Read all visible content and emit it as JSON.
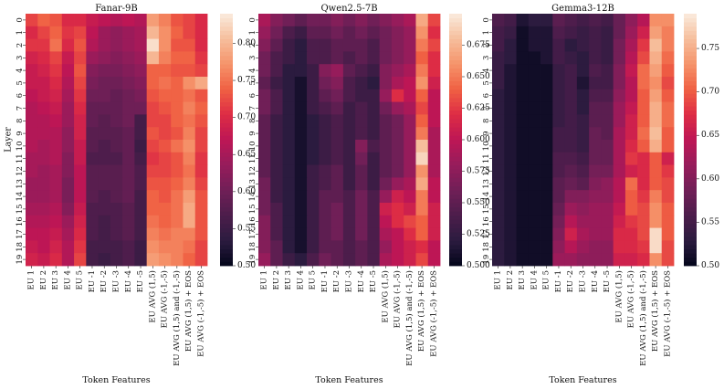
{
  "shared": {
    "ylabel": "Layer",
    "xlabel": "Token Features",
    "layers": [
      "0",
      "1",
      "2",
      "3",
      "4",
      "5",
      "6",
      "7",
      "8",
      "9",
      "10",
      "11",
      "12",
      "13",
      "14",
      "15",
      "16",
      "17",
      "18",
      "19"
    ],
    "features": [
      "EU 1",
      "EU 2",
      "EU 3",
      "EU 4",
      "EU 5",
      "EU -1",
      "EU -2",
      "EU -3",
      "EU -4",
      "EU -5",
      "EU AVG (1,5)",
      "EU AVG (-1,-5)",
      "EU AVG (1,5) and (-1,-5)",
      "EU AVG (1,5) + EOS",
      "EU AVG (-1,-5) + EOS"
    ],
    "colormap": {
      "name": "rocket",
      "stops": [
        "#03051a",
        "#2b1b3f",
        "#4c1d4b",
        "#701f57",
        "#961c5b",
        "#bd1655",
        "#dd2c45",
        "#f06043",
        "#f5936a",
        "#f6be9c",
        "#faebdd"
      ]
    }
  },
  "chart_data": [
    {
      "type": "heatmap",
      "title": "Fanar-9B",
      "vmin": 0.5,
      "vmax": 0.84,
      "colorbar_ticks": [
        "0.50",
        "0.55",
        "0.60",
        "0.65",
        "0.70",
        "0.75",
        "0.80"
      ],
      "colorbar_tick_values": [
        0.5,
        0.55,
        0.6,
        0.65,
        0.7,
        0.75,
        0.8
      ],
      "values": [
        [
          0.72,
          0.74,
          0.73,
          0.7,
          0.7,
          0.68,
          0.67,
          0.66,
          0.67,
          0.66,
          0.78,
          0.76,
          0.73,
          0.72,
          0.7
        ],
        [
          0.7,
          0.72,
          0.74,
          0.71,
          0.72,
          0.67,
          0.64,
          0.63,
          0.64,
          0.65,
          0.8,
          0.77,
          0.74,
          0.72,
          0.7
        ],
        [
          0.71,
          0.71,
          0.75,
          0.7,
          0.73,
          0.66,
          0.64,
          0.63,
          0.64,
          0.65,
          0.83,
          0.77,
          0.73,
          0.73,
          0.7
        ],
        [
          0.69,
          0.7,
          0.72,
          0.68,
          0.72,
          0.64,
          0.63,
          0.62,
          0.63,
          0.64,
          0.8,
          0.76,
          0.74,
          0.74,
          0.71
        ],
        [
          0.68,
          0.69,
          0.71,
          0.67,
          0.73,
          0.62,
          0.61,
          0.61,
          0.62,
          0.63,
          0.74,
          0.74,
          0.73,
          0.73,
          0.72
        ],
        [
          0.68,
          0.68,
          0.7,
          0.66,
          0.72,
          0.61,
          0.6,
          0.6,
          0.61,
          0.62,
          0.74,
          0.75,
          0.74,
          0.77,
          0.79
        ],
        [
          0.67,
          0.68,
          0.69,
          0.65,
          0.71,
          0.6,
          0.6,
          0.59,
          0.6,
          0.61,
          0.73,
          0.74,
          0.74,
          0.75,
          0.73
        ],
        [
          0.66,
          0.67,
          0.68,
          0.64,
          0.7,
          0.59,
          0.59,
          0.59,
          0.6,
          0.6,
          0.72,
          0.73,
          0.74,
          0.76,
          0.74
        ],
        [
          0.66,
          0.66,
          0.67,
          0.64,
          0.69,
          0.59,
          0.58,
          0.59,
          0.6,
          0.56,
          0.72,
          0.72,
          0.74,
          0.75,
          0.73
        ],
        [
          0.66,
          0.66,
          0.66,
          0.63,
          0.69,
          0.58,
          0.58,
          0.58,
          0.59,
          0.56,
          0.73,
          0.72,
          0.73,
          0.76,
          0.72
        ],
        [
          0.66,
          0.65,
          0.66,
          0.63,
          0.68,
          0.58,
          0.57,
          0.58,
          0.59,
          0.55,
          0.72,
          0.73,
          0.75,
          0.77,
          0.72
        ],
        [
          0.65,
          0.65,
          0.66,
          0.62,
          0.68,
          0.57,
          0.57,
          0.57,
          0.59,
          0.56,
          0.71,
          0.72,
          0.73,
          0.76,
          0.71
        ],
        [
          0.65,
          0.64,
          0.65,
          0.62,
          0.67,
          0.58,
          0.58,
          0.58,
          0.59,
          0.57,
          0.72,
          0.72,
          0.73,
          0.75,
          0.71
        ],
        [
          0.64,
          0.64,
          0.65,
          0.61,
          0.67,
          0.58,
          0.58,
          0.58,
          0.59,
          0.57,
          0.73,
          0.73,
          0.74,
          0.76,
          0.72
        ],
        [
          0.64,
          0.64,
          0.65,
          0.61,
          0.67,
          0.58,
          0.57,
          0.58,
          0.59,
          0.56,
          0.74,
          0.73,
          0.75,
          0.78,
          0.73
        ],
        [
          0.65,
          0.65,
          0.66,
          0.62,
          0.68,
          0.57,
          0.57,
          0.57,
          0.58,
          0.56,
          0.74,
          0.74,
          0.75,
          0.79,
          0.73
        ],
        [
          0.66,
          0.66,
          0.67,
          0.64,
          0.69,
          0.57,
          0.56,
          0.57,
          0.58,
          0.56,
          0.75,
          0.74,
          0.75,
          0.79,
          0.73
        ],
        [
          0.67,
          0.67,
          0.68,
          0.65,
          0.7,
          0.57,
          0.56,
          0.57,
          0.58,
          0.56,
          0.76,
          0.75,
          0.76,
          0.76,
          0.73
        ],
        [
          0.68,
          0.67,
          0.69,
          0.66,
          0.71,
          0.56,
          0.56,
          0.56,
          0.57,
          0.55,
          0.77,
          0.76,
          0.76,
          0.75,
          0.72
        ],
        [
          0.69,
          0.68,
          0.7,
          0.66,
          0.72,
          0.56,
          0.55,
          0.56,
          0.57,
          0.55,
          0.78,
          0.77,
          0.76,
          0.74,
          0.72
        ]
      ]
    },
    {
      "type": "heatmap",
      "title": "Qwen2.5-7B",
      "vmin": 0.5,
      "vmax": 0.7,
      "colorbar_ticks": [
        "0.500",
        "0.525",
        "0.550",
        "0.575",
        "0.600",
        "0.625",
        "0.650",
        "0.675"
      ],
      "colorbar_tick_values": [
        0.5,
        0.525,
        0.55,
        0.575,
        0.6,
        0.625,
        0.65,
        0.675
      ],
      "values": [
        [
          0.59,
          0.57,
          0.56,
          0.55,
          0.56,
          0.56,
          0.57,
          0.56,
          0.57,
          0.56,
          0.57,
          0.58,
          0.59,
          0.67,
          0.63
        ],
        [
          0.58,
          0.56,
          0.54,
          0.53,
          0.55,
          0.55,
          0.56,
          0.55,
          0.56,
          0.55,
          0.56,
          0.57,
          0.58,
          0.66,
          0.62
        ],
        [
          0.57,
          0.55,
          0.53,
          0.52,
          0.54,
          0.54,
          0.55,
          0.55,
          0.55,
          0.54,
          0.56,
          0.57,
          0.58,
          0.65,
          0.63
        ],
        [
          0.56,
          0.54,
          0.53,
          0.52,
          0.54,
          0.54,
          0.55,
          0.54,
          0.55,
          0.54,
          0.56,
          0.57,
          0.58,
          0.64,
          0.62
        ],
        [
          0.56,
          0.54,
          0.52,
          0.52,
          0.53,
          0.57,
          0.58,
          0.55,
          0.54,
          0.53,
          0.57,
          0.58,
          0.59,
          0.65,
          0.62
        ],
        [
          0.55,
          0.53,
          0.52,
          0.51,
          0.53,
          0.56,
          0.57,
          0.54,
          0.53,
          0.52,
          0.57,
          0.59,
          0.6,
          0.66,
          0.61
        ],
        [
          0.56,
          0.54,
          0.52,
          0.51,
          0.53,
          0.55,
          0.56,
          0.54,
          0.53,
          0.53,
          0.58,
          0.62,
          0.6,
          0.64,
          0.6
        ],
        [
          0.56,
          0.54,
          0.52,
          0.51,
          0.53,
          0.54,
          0.55,
          0.53,
          0.54,
          0.53,
          0.56,
          0.58,
          0.59,
          0.63,
          0.6
        ],
        [
          0.55,
          0.53,
          0.52,
          0.51,
          0.52,
          0.53,
          0.54,
          0.53,
          0.54,
          0.53,
          0.55,
          0.56,
          0.58,
          0.64,
          0.6
        ],
        [
          0.55,
          0.53,
          0.52,
          0.51,
          0.52,
          0.53,
          0.54,
          0.53,
          0.54,
          0.53,
          0.55,
          0.56,
          0.58,
          0.65,
          0.59
        ],
        [
          0.55,
          0.53,
          0.52,
          0.51,
          0.52,
          0.53,
          0.54,
          0.53,
          0.57,
          0.54,
          0.55,
          0.56,
          0.58,
          0.68,
          0.59
        ],
        [
          0.55,
          0.53,
          0.52,
          0.51,
          0.52,
          0.53,
          0.54,
          0.53,
          0.56,
          0.53,
          0.55,
          0.56,
          0.58,
          0.69,
          0.59
        ],
        [
          0.55,
          0.53,
          0.52,
          0.51,
          0.53,
          0.54,
          0.55,
          0.53,
          0.55,
          0.53,
          0.55,
          0.56,
          0.58,
          0.66,
          0.59
        ],
        [
          0.56,
          0.53,
          0.52,
          0.51,
          0.53,
          0.54,
          0.55,
          0.53,
          0.55,
          0.53,
          0.56,
          0.58,
          0.59,
          0.67,
          0.6
        ],
        [
          0.56,
          0.53,
          0.52,
          0.51,
          0.53,
          0.55,
          0.55,
          0.54,
          0.56,
          0.54,
          0.58,
          0.61,
          0.6,
          0.65,
          0.6
        ],
        [
          0.56,
          0.54,
          0.52,
          0.51,
          0.53,
          0.55,
          0.56,
          0.54,
          0.56,
          0.54,
          0.61,
          0.62,
          0.61,
          0.65,
          0.61
        ],
        [
          0.57,
          0.54,
          0.52,
          0.51,
          0.53,
          0.55,
          0.56,
          0.54,
          0.56,
          0.54,
          0.6,
          0.62,
          0.63,
          0.64,
          0.61
        ],
        [
          0.57,
          0.54,
          0.52,
          0.51,
          0.53,
          0.55,
          0.56,
          0.54,
          0.56,
          0.54,
          0.59,
          0.6,
          0.62,
          0.64,
          0.61
        ],
        [
          0.57,
          0.55,
          0.52,
          0.51,
          0.53,
          0.55,
          0.55,
          0.54,
          0.55,
          0.54,
          0.58,
          0.6,
          0.61,
          0.62,
          0.6
        ],
        [
          0.58,
          0.55,
          0.53,
          0.52,
          0.54,
          0.56,
          0.55,
          0.54,
          0.55,
          0.54,
          0.59,
          0.6,
          0.61,
          0.63,
          0.6
        ]
      ]
    },
    {
      "type": "heatmap",
      "title": "Gemma3-12B",
      "vmin": 0.5,
      "vmax": 0.79,
      "colorbar_ticks": [
        "0.50",
        "0.55",
        "0.60",
        "0.65",
        "0.70",
        "0.75"
      ],
      "colorbar_tick_values": [
        0.5,
        0.55,
        0.6,
        0.65,
        0.7,
        0.75
      ],
      "values": [
        [
          0.56,
          0.55,
          0.52,
          0.53,
          0.53,
          0.57,
          0.56,
          0.55,
          0.56,
          0.55,
          0.58,
          0.61,
          0.64,
          0.73,
          0.73
        ],
        [
          0.55,
          0.54,
          0.51,
          0.52,
          0.52,
          0.56,
          0.55,
          0.54,
          0.55,
          0.54,
          0.58,
          0.62,
          0.66,
          0.74,
          0.72
        ],
        [
          0.55,
          0.53,
          0.51,
          0.52,
          0.52,
          0.55,
          0.53,
          0.54,
          0.55,
          0.54,
          0.59,
          0.63,
          0.68,
          0.76,
          0.72
        ],
        [
          0.54,
          0.53,
          0.51,
          0.51,
          0.52,
          0.55,
          0.54,
          0.53,
          0.55,
          0.54,
          0.59,
          0.64,
          0.69,
          0.75,
          0.71
        ],
        [
          0.54,
          0.52,
          0.51,
          0.51,
          0.51,
          0.54,
          0.55,
          0.53,
          0.56,
          0.55,
          0.6,
          0.65,
          0.71,
          0.74,
          0.7
        ],
        [
          0.54,
          0.52,
          0.51,
          0.51,
          0.51,
          0.54,
          0.55,
          0.52,
          0.55,
          0.55,
          0.6,
          0.64,
          0.71,
          0.73,
          0.69
        ],
        [
          0.53,
          0.52,
          0.51,
          0.51,
          0.51,
          0.54,
          0.55,
          0.53,
          0.56,
          0.56,
          0.61,
          0.64,
          0.7,
          0.74,
          0.7
        ],
        [
          0.53,
          0.52,
          0.51,
          0.51,
          0.51,
          0.54,
          0.55,
          0.53,
          0.57,
          0.57,
          0.62,
          0.65,
          0.7,
          0.75,
          0.71
        ],
        [
          0.53,
          0.52,
          0.51,
          0.51,
          0.51,
          0.54,
          0.55,
          0.54,
          0.57,
          0.57,
          0.62,
          0.66,
          0.7,
          0.75,
          0.71
        ],
        [
          0.53,
          0.52,
          0.51,
          0.51,
          0.51,
          0.55,
          0.55,
          0.54,
          0.58,
          0.57,
          0.63,
          0.66,
          0.71,
          0.76,
          0.7
        ],
        [
          0.53,
          0.52,
          0.51,
          0.51,
          0.51,
          0.55,
          0.55,
          0.54,
          0.58,
          0.58,
          0.63,
          0.67,
          0.7,
          0.75,
          0.7
        ],
        [
          0.53,
          0.52,
          0.51,
          0.51,
          0.51,
          0.56,
          0.56,
          0.55,
          0.58,
          0.58,
          0.63,
          0.68,
          0.67,
          0.7,
          0.66
        ],
        [
          0.53,
          0.52,
          0.51,
          0.51,
          0.51,
          0.56,
          0.57,
          0.56,
          0.59,
          0.59,
          0.63,
          0.66,
          0.67,
          0.7,
          0.68
        ],
        [
          0.53,
          0.52,
          0.51,
          0.51,
          0.51,
          0.57,
          0.58,
          0.57,
          0.6,
          0.61,
          0.64,
          0.71,
          0.67,
          0.7,
          0.69
        ],
        [
          0.53,
          0.52,
          0.51,
          0.51,
          0.51,
          0.57,
          0.6,
          0.6,
          0.61,
          0.61,
          0.64,
          0.7,
          0.68,
          0.72,
          0.69
        ],
        [
          0.53,
          0.52,
          0.51,
          0.51,
          0.51,
          0.58,
          0.62,
          0.61,
          0.62,
          0.62,
          0.65,
          0.7,
          0.69,
          0.73,
          0.7
        ],
        [
          0.53,
          0.52,
          0.51,
          0.51,
          0.51,
          0.59,
          0.64,
          0.62,
          0.62,
          0.62,
          0.66,
          0.68,
          0.69,
          0.73,
          0.7
        ],
        [
          0.53,
          0.52,
          0.51,
          0.51,
          0.51,
          0.6,
          0.66,
          0.63,
          0.62,
          0.62,
          0.67,
          0.67,
          0.69,
          0.78,
          0.7
        ],
        [
          0.53,
          0.52,
          0.51,
          0.51,
          0.51,
          0.61,
          0.64,
          0.62,
          0.61,
          0.61,
          0.67,
          0.67,
          0.68,
          0.78,
          0.69
        ],
        [
          0.53,
          0.52,
          0.51,
          0.51,
          0.51,
          0.62,
          0.62,
          0.61,
          0.61,
          0.61,
          0.66,
          0.66,
          0.67,
          0.73,
          0.69
        ]
      ]
    }
  ]
}
